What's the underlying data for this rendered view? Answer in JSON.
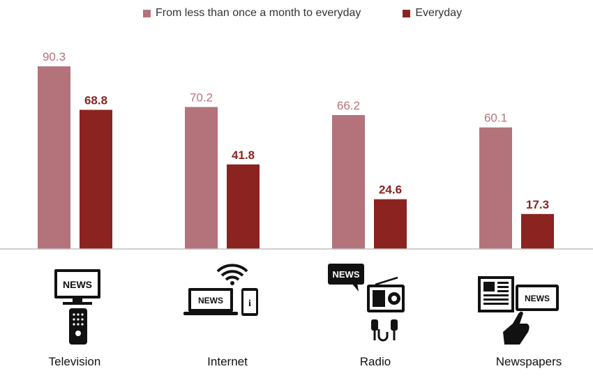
{
  "chart_data": {
    "type": "bar",
    "categories": [
      "Television",
      "Internet",
      "Radio",
      "Newspapers"
    ],
    "series": [
      {
        "name": "From less than once a month to everyday",
        "values": [
          90.3,
          70.2,
          66.2,
          60.1
        ],
        "color": "#b4737a"
      },
      {
        "name": "Everyday",
        "values": [
          68.8,
          41.8,
          24.6,
          17.3
        ],
        "color": "#8b2320"
      }
    ],
    "ylim": [
      0,
      100
    ],
    "grid": false,
    "legend_position": "top-center"
  },
  "icons": {
    "tv_sign": "NEWS",
    "internet_sign": "NEWS",
    "internet_info": "i",
    "radio_bubble": "NEWS",
    "paper_sign": "NEWS",
    "tv_icon": "television-remote-icon",
    "internet_icon": "laptop-wifi-phone-icon",
    "radio_icon": "radio-speech-bubble-icon",
    "newspaper_icon": "newspaper-tablet-hand-icon"
  }
}
